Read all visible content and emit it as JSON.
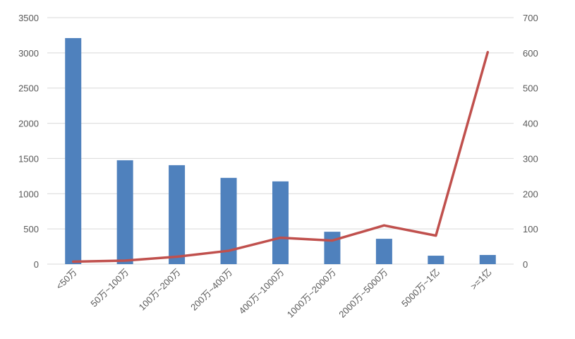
{
  "chart_data": {
    "type": "bar+line",
    "categories": [
      "<50万",
      "50万~100万",
      "100万~200万",
      "200万~400万",
      "400万~1000万",
      "1000万~2000万",
      "2000万~5000万",
      "5000万~1亿",
      ">=1亿"
    ],
    "series": [
      {
        "type": "bar",
        "axis": "left",
        "values": [
          3210,
          1475,
          1405,
          1225,
          1175,
          460,
          360,
          120,
          130
        ]
      },
      {
        "type": "line",
        "axis": "right",
        "values": [
          7,
          10,
          21,
          38,
          75,
          67,
          110,
          81,
          602
        ]
      }
    ],
    "left_axis": {
      "ylim": [
        0,
        3500
      ],
      "ticks": [
        0,
        500,
        1000,
        1500,
        2000,
        2500,
        3000,
        3500
      ]
    },
    "right_axis": {
      "ylim": [
        0,
        700
      ],
      "ticks": [
        0,
        100,
        200,
        300,
        400,
        500,
        600,
        700
      ]
    },
    "grid": true,
    "colors": {
      "bar": "#4f81bd",
      "line": "#c0504d",
      "grid": "#d9d9d9"
    }
  }
}
